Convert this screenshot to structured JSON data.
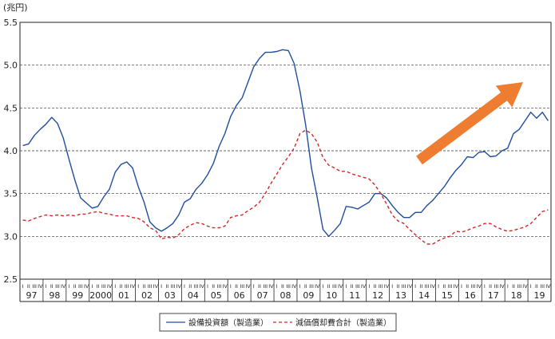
{
  "chart_data": {
    "type": "line",
    "ylabel": "(兆円)",
    "ylim": [
      2.5,
      5.5
    ],
    "yticks": [
      "2.5",
      "3.0",
      "3.5",
      "4.0",
      "4.5",
      "5.0",
      "5.5"
    ],
    "ytick_values": [
      2.5,
      3.0,
      3.5,
      4.0,
      4.5,
      5.0,
      5.5
    ],
    "grid": "horizontal-dashed",
    "quarter_labels": [
      "I",
      "II",
      "III",
      "IV"
    ],
    "years": [
      "97",
      "98",
      "99",
      "2000",
      "01",
      "02",
      "03",
      "04",
      "05",
      "06",
      "07",
      "08",
      "09",
      "10",
      "11",
      "12",
      "13",
      "14",
      "15",
      "16",
      "17",
      "18",
      "19"
    ],
    "legend_position": "bottom",
    "annotation": "orange-arrow-up-right",
    "series": [
      {
        "name": "設備投資額（製造業）",
        "color": "#1f4e9c",
        "style": "solid",
        "values": [
          4.06,
          4.08,
          4.18,
          4.25,
          4.31,
          4.39,
          4.32,
          4.15,
          3.9,
          3.66,
          3.45,
          3.39,
          3.33,
          3.35,
          3.46,
          3.55,
          3.75,
          3.84,
          3.87,
          3.8,
          3.58,
          3.4,
          3.17,
          3.1,
          3.06,
          3.1,
          3.15,
          3.25,
          3.4,
          3.44,
          3.55,
          3.62,
          3.72,
          3.85,
          4.05,
          4.2,
          4.4,
          4.53,
          4.62,
          4.8,
          4.98,
          5.08,
          5.15,
          5.15,
          5.16,
          5.18,
          5.17,
          5.02,
          4.7,
          4.3,
          3.8,
          3.45,
          3.08,
          3.0,
          3.07,
          3.15,
          3.35,
          3.34,
          3.32,
          3.36,
          3.4,
          3.5,
          3.5,
          3.45,
          3.36,
          3.28,
          3.22,
          3.22,
          3.28,
          3.28,
          3.36,
          3.42,
          3.5,
          3.58,
          3.68,
          3.77,
          3.84,
          3.93,
          3.92,
          3.98,
          3.99,
          3.93,
          3.94,
          4.0,
          4.03,
          4.2,
          4.25,
          4.35,
          4.45,
          4.38,
          4.45,
          4.35
        ]
      },
      {
        "name": "減価償却費合計（製造業）",
        "color": "#d22828",
        "style": "dashed",
        "values": [
          3.19,
          3.18,
          3.21,
          3.23,
          3.25,
          3.24,
          3.25,
          3.24,
          3.25,
          3.24,
          3.26,
          3.26,
          3.28,
          3.29,
          3.27,
          3.26,
          3.24,
          3.24,
          3.24,
          3.22,
          3.21,
          3.17,
          3.1,
          3.07,
          2.97,
          2.99,
          2.98,
          3.02,
          3.09,
          3.13,
          3.16,
          3.15,
          3.12,
          3.1,
          3.1,
          3.12,
          3.22,
          3.24,
          3.25,
          3.3,
          3.34,
          3.4,
          3.5,
          3.62,
          3.73,
          3.84,
          3.93,
          4.03,
          4.2,
          4.24,
          4.2,
          4.1,
          3.92,
          3.83,
          3.8,
          3.76,
          3.76,
          3.73,
          3.71,
          3.69,
          3.67,
          3.6,
          3.5,
          3.38,
          3.25,
          3.18,
          3.15,
          3.08,
          3.02,
          2.96,
          2.91,
          2.91,
          2.95,
          2.98,
          3.0,
          3.06,
          3.05,
          3.07,
          3.1,
          3.12,
          3.15,
          3.15,
          3.11,
          3.08,
          3.06,
          3.07,
          3.09,
          3.11,
          3.15,
          3.22,
          3.29,
          3.31
        ]
      }
    ]
  }
}
